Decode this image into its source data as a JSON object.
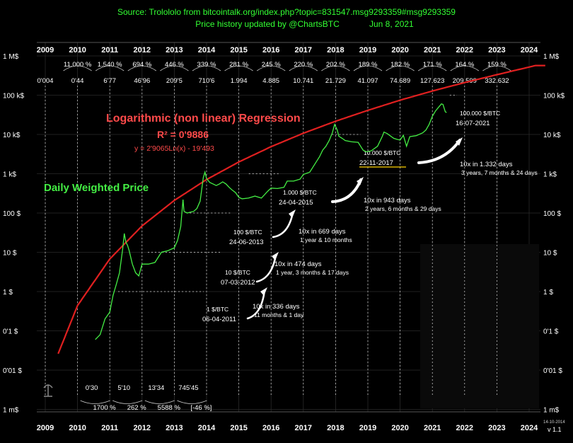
{
  "header": {
    "source": "Source: Trolololo from bitcointalk.org/index.php?topic=831547.msg9293359#msg9293359",
    "updated": "Price history updated by @ChartsBTC",
    "date": "Jun 8, 2021"
  },
  "regression": {
    "title": "Logarithmic (non linear) Regression",
    "r2": "R² = 0'9886",
    "equation": "y = 2'9065Ln(x) - 19'493"
  },
  "series_label": "Daily Weighted Price",
  "version": "v 1.1",
  "version_date": "14-10-2014",
  "colors": {
    "background": "#000000",
    "price": "#44ee44",
    "regression": "#e02020",
    "header": "#33ff33",
    "guides": "#dddddd"
  },
  "annual_growth": [
    {
      "year": "2010",
      "pct": "11.000 %"
    },
    {
      "year": "2011",
      "pct": "1.540 %"
    },
    {
      "year": "2012",
      "pct": "694 %"
    },
    {
      "year": "2013",
      "pct": "446 %"
    },
    {
      "year": "2014",
      "pct": "339 %"
    },
    {
      "year": "2015",
      "pct": "281 %"
    },
    {
      "year": "2016",
      "pct": "245 %"
    },
    {
      "year": "2017",
      "pct": "220 %"
    },
    {
      "year": "2018",
      "pct": "202 %"
    },
    {
      "year": "2019",
      "pct": "189 %"
    },
    {
      "year": "2020",
      "pct": "182 %"
    },
    {
      "year": "2021",
      "pct": "171 %"
    },
    {
      "year": "2022",
      "pct": "164 %"
    },
    {
      "year": "2023",
      "pct": "159 %"
    }
  ],
  "regression_values": [
    {
      "year": "2009",
      "label": "0'004"
    },
    {
      "year": "2010",
      "label": "0'44"
    },
    {
      "year": "2011",
      "label": "6'77"
    },
    {
      "year": "2012",
      "label": "46'96"
    },
    {
      "year": "2013",
      "label": "209'5"
    },
    {
      "year": "2014",
      "label": "710'6"
    },
    {
      "year": "2015",
      "label": "1.994"
    },
    {
      "year": "2016",
      "label": "4.885"
    },
    {
      "year": "2017",
      "label": "10.741"
    },
    {
      "year": "2018",
      "label": "21.729"
    },
    {
      "year": "2019",
      "label": "41.097"
    },
    {
      "year": "2020",
      "label": "74.689"
    },
    {
      "year": "2021",
      "label": "127.623"
    },
    {
      "year": "2022",
      "label": "209.599"
    },
    {
      "year": "2023",
      "label": "332.632"
    }
  ],
  "bottom_values": [
    {
      "year": "2010",
      "label": "0'30"
    },
    {
      "year": "2011",
      "label": "5'10"
    },
    {
      "year": "2012",
      "label": "13'34"
    },
    {
      "year": "2013",
      "label": "745'45"
    }
  ],
  "bottom_growth": [
    {
      "year": "2010",
      "label": "1700 %"
    },
    {
      "year": "2011",
      "label": "262 %"
    },
    {
      "year": "2012",
      "label": "5588 %"
    },
    {
      "year": "2013",
      "label": "[-46 %]"
    }
  ],
  "milestones": [
    {
      "value": "1 $/BTC",
      "date": "06-04-2011"
    },
    {
      "value": "10 $/BTC",
      "date": "07-03-2012"
    },
    {
      "value": "100 $/BTC",
      "date": "24-06-2013"
    },
    {
      "value": "1.000 $/BTC",
      "date": "24-04-2015"
    },
    {
      "value": "10.000 $/BTC",
      "date": "22-11-2017"
    },
    {
      "value": "100.000 $/BTC",
      "date": "16-07-2021"
    }
  ],
  "intervals": [
    {
      "title": "10x in 336 days",
      "detail": "11 months & 1 day"
    },
    {
      "title": "10x in 474 days",
      "detail": "1 year, 3 months & 17 days"
    },
    {
      "title": "10x in 669 days",
      "detail": "1 year & 10 months"
    },
    {
      "title": "10x in 943 days",
      "detail": "2 years, 6 months & 29 days"
    },
    {
      "title": "10x  in 1.332 days",
      "detail": "3 years, 7 months & 24 days"
    }
  ],
  "chart_data": {
    "type": "line",
    "yscale": "log",
    "ylim": [
      0.001,
      1000000
    ],
    "xlim": [
      2008.5,
      2024.5
    ],
    "x_ticks": [
      "2009",
      "2010",
      "2011",
      "2012",
      "2013",
      "2014",
      "2015",
      "2016",
      "2017",
      "2018",
      "2019",
      "2020",
      "2021",
      "2022",
      "2023",
      "2024"
    ],
    "y_ticks_left": [
      "1 M$",
      "100 k$",
      "10 k$",
      "1 k$",
      "100 $",
      "10 $",
      "1 $",
      "0'1 $",
      "0'01 $",
      "1 m$"
    ],
    "y_ticks_right": [
      "1 M$",
      "100 k$",
      "10 k$",
      "1 k$",
      "100 $",
      "10 $",
      "1 $",
      "0'1 $",
      "0'01 $",
      "1 m$"
    ],
    "series": [
      {
        "name": "Daily Weighted Price",
        "x": [
          2010.55,
          2010.7,
          2010.85,
          2011.0,
          2011.1,
          2011.2,
          2011.3,
          2011.4,
          2011.45,
          2011.5,
          2011.55,
          2011.6,
          2011.7,
          2011.8,
          2011.9,
          2012.0,
          2012.2,
          2012.4,
          2012.6,
          2012.8,
          2013.0,
          2013.1,
          2013.2,
          2013.27,
          2013.3,
          2013.4,
          2013.5,
          2013.6,
          2013.7,
          2013.8,
          2013.9,
          2013.95,
          2014.0,
          2014.1,
          2014.2,
          2014.3,
          2014.4,
          2014.5,
          2014.6,
          2014.7,
          2014.8,
          2014.9,
          2015.0,
          2015.1,
          2015.3,
          2015.5,
          2015.7,
          2015.9,
          2016.0,
          2016.2,
          2016.4,
          2016.5,
          2016.7,
          2016.9,
          2017.0,
          2017.2,
          2017.4,
          2017.5,
          2017.6,
          2017.7,
          2017.8,
          2017.9,
          2017.97,
          2018.05,
          2018.1,
          2018.2,
          2018.3,
          2018.5,
          2018.7,
          2018.85,
          2018.95,
          2019.1,
          2019.3,
          2019.45,
          2019.5,
          2019.6,
          2019.8,
          2019.9,
          2020.0,
          2020.1,
          2020.2,
          2020.3,
          2020.5,
          2020.7,
          2020.8,
          2020.9,
          2021.0,
          2021.1,
          2021.2,
          2021.28,
          2021.33,
          2021.4,
          2021.44
        ],
        "values": [
          0.06,
          0.08,
          0.2,
          0.3,
          0.8,
          1.5,
          3,
          12,
          30,
          18,
          15,
          11,
          5,
          3,
          2.5,
          5,
          5,
          5.5,
          10,
          11,
          13,
          20,
          45,
          220,
          110,
          100,
          105,
          110,
          130,
          200,
          800,
          1100,
          750,
          600,
          550,
          500,
          550,
          620,
          550,
          450,
          380,
          330,
          250,
          230,
          240,
          270,
          240,
          360,
          430,
          420,
          450,
          650,
          650,
          730,
          960,
          1100,
          2000,
          2700,
          4000,
          5000,
          7000,
          11000,
          18000,
          13000,
          9000,
          8000,
          7000,
          6500,
          6300,
          4000,
          3600,
          3800,
          5000,
          9000,
          11500,
          10500,
          8000,
          7500,
          7200,
          9500,
          5000,
          8800,
          9300,
          11000,
          13000,
          18000,
          29000,
          40000,
          50000,
          60000,
          58000,
          38000,
          36000
        ]
      },
      {
        "name": "Logarithmic (non linear) Regression",
        "x": [
          2009,
          2010,
          2011,
          2012,
          2013,
          2014,
          2015,
          2016,
          2017,
          2018,
          2019,
          2020,
          2021,
          2022,
          2023,
          2024
        ],
        "values": [
          0.004,
          0.44,
          6.77,
          46.96,
          209.5,
          710.6,
          1994,
          4885,
          10741,
          21729,
          41097,
          74689,
          127623,
          209599,
          332632,
          520000
        ]
      }
    ]
  }
}
